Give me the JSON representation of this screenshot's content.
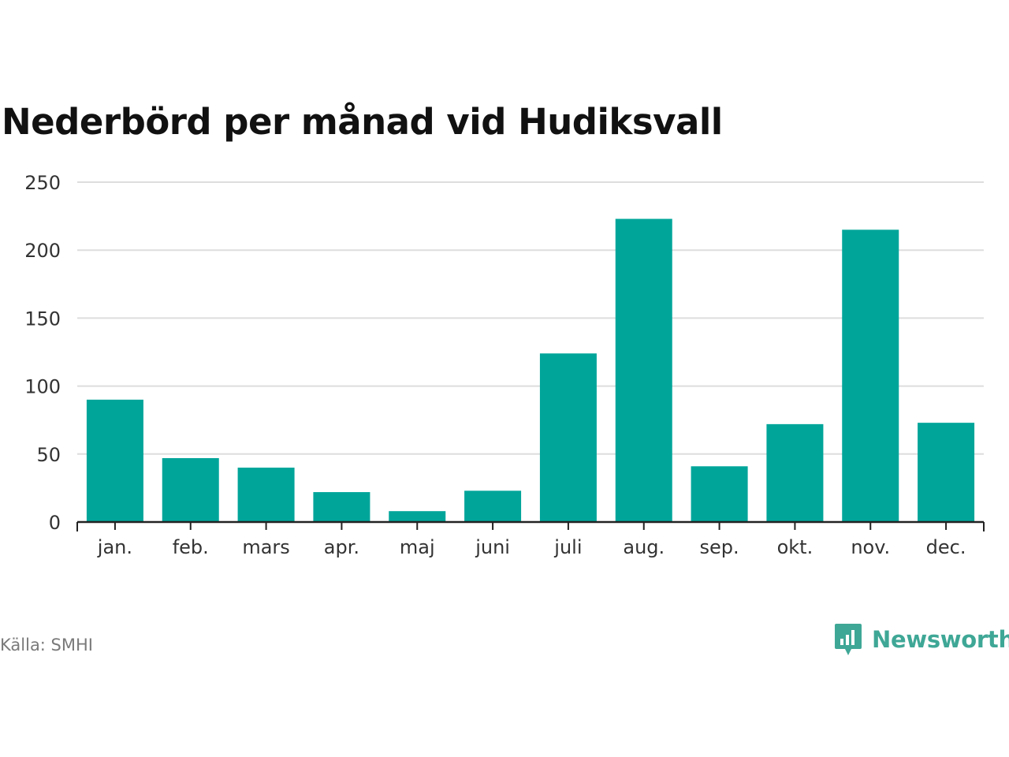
{
  "title": "Nederbörd per månad vid Hudiksvall",
  "source": "Källa: SMHI",
  "brand": {
    "name": "Newsworthy",
    "icon": "newsworthy-logo-icon",
    "color": "#3fa796"
  },
  "colors": {
    "bar": "#00a59a",
    "grid": "#dddddd",
    "axis": "#222222"
  },
  "chart_data": {
    "type": "bar",
    "categories": [
      "jan.",
      "feb.",
      "mars",
      "apr.",
      "maj",
      "juni",
      "juli",
      "aug.",
      "sep.",
      "okt.",
      "nov.",
      "dec."
    ],
    "values": [
      90,
      47,
      40,
      22,
      8,
      23,
      124,
      223,
      41,
      72,
      215,
      73
    ],
    "ylim": [
      0,
      250
    ],
    "yticks": [
      0,
      50,
      100,
      150,
      200,
      250
    ],
    "xlabel": "",
    "ylabel": "",
    "grid": true,
    "legend": "none"
  }
}
